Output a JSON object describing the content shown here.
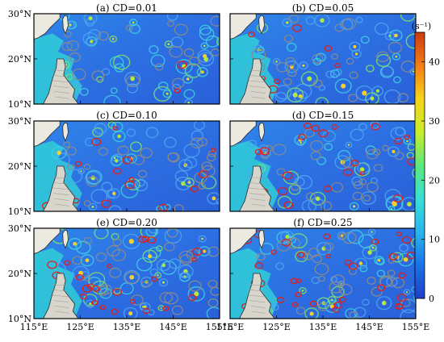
{
  "chart_data": {
    "type": "heatmap",
    "layout": "3 rows x 2 columns of map panels with shared colorbar",
    "lon_ticks": [
      "115°E",
      "125°E",
      "135°E",
      "145°E",
      "155°E"
    ],
    "lat_ticks": [
      "10°N",
      "20°N",
      "30°N"
    ],
    "xlim_deg": [
      115,
      155
    ],
    "ylim_deg": [
      10,
      30
    ],
    "panels": [
      {
        "label": "(a) CD=0.01",
        "cd": 0.01
      },
      {
        "label": "(b) CD=0.05",
        "cd": 0.05
      },
      {
        "label": "(c) CD=0.10",
        "cd": 0.1
      },
      {
        "label": "(d) CD=0.15",
        "cd": 0.15
      },
      {
        "label": "(e) CD=0.20",
        "cd": 0.2
      },
      {
        "label": "(f) CD=0.25",
        "cd": 0.25
      }
    ],
    "colorbar": {
      "unit": "(s⁻¹)",
      "range": [
        0,
        45
      ],
      "ticks": [
        "0",
        "10",
        "20",
        "30",
        "40"
      ],
      "tick_values": [
        0,
        10,
        20,
        30,
        40
      ],
      "colormap": [
        "#1e3fc7",
        "#1a72e8",
        "#2ab5ef",
        "#36e0d6",
        "#5de87c",
        "#c8ee2a",
        "#f8d21b",
        "#f57d15",
        "#cc3b10"
      ]
    },
    "grid": false
  },
  "colors": {
    "land": "#eceae0",
    "coast": "#2b2b2b",
    "ocean_base": "#2a6fe0",
    "ocean_shelf": "#32d9d6",
    "eddy_ring": "#7ee06e",
    "contour_gray": "#8a8a8a",
    "contour_red": "#e0201a"
  }
}
